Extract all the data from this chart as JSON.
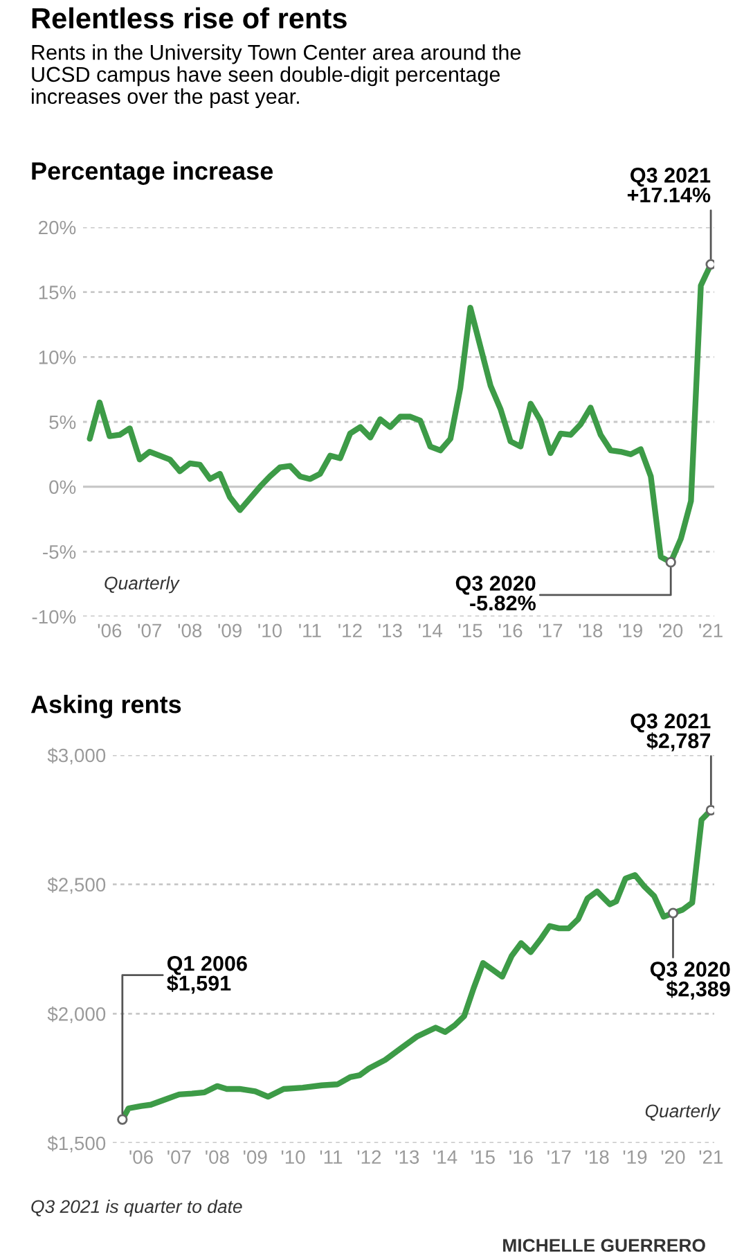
{
  "chart_data": [
    {
      "type": "line",
      "title": "Percentage increase",
      "subtitle": "Relentless rise of rents\nRents in the University Town Center area around the\nUCSD campus have seen double-digit percentage\nincreases over the past year.",
      "series": [
        {
          "color": "#3d9b47",
          "x": [
            "2006-01",
            "2006-04",
            "2006-07",
            "2006-10",
            "2007-01",
            "2007-04",
            "2007-07",
            "2008-01",
            "2008-04",
            "2008-07",
            "2008-10",
            "2009-01",
            "2009-04",
            "2009-07",
            "2009-10",
            "2010-04",
            "2010-07",
            "2010-10",
            "2011-01",
            "2011-04",
            "2011-07",
            "2011-10",
            "2012-01",
            "2012-04",
            "2012-07",
            "2012-10",
            "2013-01",
            "2013-04",
            "2013-07",
            "2013-10",
            "2014-01",
            "2014-04",
            "2014-07",
            "2014-10",
            "2015-01",
            "2015-04",
            "2015-07",
            "2015-10",
            "2016-01",
            "2016-04",
            "2016-07",
            "2016-10",
            "2017-01",
            "2017-04",
            "2017-07",
            "2017-10",
            "2018-01",
            "2018-04",
            "2018-07",
            "2018-10",
            "2019-01",
            "2019-04",
            "2019-07",
            "2019-10",
            "2020-01",
            "2020-04",
            "2020-07",
            "2020-10",
            "2021-01",
            "2021-04",
            "2021-07"
          ],
          "values": [
            3.7,
            6.5,
            3.9,
            4.0,
            4.5,
            2.1,
            2.7,
            2.1,
            1.2,
            1.8,
            1.7,
            0.6,
            1.0,
            -0.8,
            -1.8,
            0.0,
            0.8,
            1.5,
            1.6,
            0.8,
            0.6,
            1.0,
            2.4,
            2.2,
            4.1,
            4.6,
            3.8,
            5.2,
            4.6,
            5.4,
            5.4,
            5.1,
            3.1,
            2.8,
            3.7,
            7.6,
            13.8,
            10.8,
            7.8,
            6.0,
            3.5,
            3.1,
            6.4,
            5.1,
            2.6,
            4.1,
            4.0,
            4.8,
            6.1,
            4.0,
            2.8,
            2.7,
            2.5,
            2.9,
            0.8,
            -5.4,
            -5.82,
            -4.0,
            -1.1,
            15.5,
            17.14
          ]
        }
      ],
      "xlim": [
        "2005-11",
        "2021-08"
      ],
      "xticks": [
        {
          "value": "2006-07",
          "label": "'06"
        },
        {
          "value": "2007-07",
          "label": "'07"
        },
        {
          "value": "2008-07",
          "label": "'08"
        },
        {
          "value": "2009-07",
          "label": "'09"
        },
        {
          "value": "2010-07",
          "label": "'10"
        },
        {
          "value": "2011-07",
          "label": "'11"
        },
        {
          "value": "2012-07",
          "label": "'12"
        },
        {
          "value": "2013-07",
          "label": "'13"
        },
        {
          "value": "2014-07",
          "label": "'14"
        },
        {
          "value": "2015-07",
          "label": "'15"
        },
        {
          "value": "2016-07",
          "label": "'16"
        },
        {
          "value": "2017-07",
          "label": "'17"
        },
        {
          "value": "2018-07",
          "label": "'18"
        },
        {
          "value": "2019-07",
          "label": "'19"
        },
        {
          "value": "2020-07",
          "label": "'20"
        },
        {
          "value": "2021-07",
          "label": "'21"
        }
      ],
      "ylim": [
        -10,
        20
      ],
      "yticks": [
        {
          "value": -10,
          "label": "-10%"
        },
        {
          "value": -5,
          "label": "-5%"
        },
        {
          "value": 0,
          "label": "0%"
        },
        {
          "value": 5,
          "label": "5%"
        },
        {
          "value": 10,
          "label": "10%"
        },
        {
          "value": 15,
          "label": "15%"
        },
        {
          "value": 20,
          "label": "20%"
        }
      ],
      "grid": "y",
      "ref_lines": [
        {
          "axis": "y",
          "value": 0,
          "color": "#c8c8c8"
        }
      ],
      "annotations": [
        {
          "text": "Q3 2021\n+17.14%",
          "x": "2021-07",
          "y": 17.14
        },
        {
          "text": "Q3 2020\n-5.82%",
          "x": "2020-07",
          "y": -5.82
        },
        "Quarterly"
      ]
    },
    {
      "type": "line",
      "title": "Asking rents",
      "series": [
        {
          "color": "#3d9b47",
          "x": [
            "2006-01",
            "2006-03",
            "2006-07",
            "2006-10",
            "2007-03",
            "2007-07",
            "2007-11",
            "2008-03",
            "2008-07",
            "2008-10",
            "2009-02",
            "2009-07",
            "2009-11",
            "2010-04",
            "2010-10",
            "2011-04",
            "2011-09",
            "2012-01",
            "2012-04",
            "2012-07",
            "2012-12",
            "2013-05",
            "2013-10",
            "2014-04",
            "2014-07",
            "2014-10",
            "2015-01",
            "2015-04",
            "2015-07",
            "2015-10",
            "2016-01",
            "2016-04",
            "2016-07",
            "2016-10",
            "2017-01",
            "2017-04",
            "2017-07",
            "2017-10",
            "2018-01",
            "2018-04",
            "2018-07",
            "2018-11",
            "2019-01",
            "2019-04",
            "2019-07",
            "2019-10",
            "2020-01",
            "2020-04",
            "2020-07",
            "2020-10",
            "2021-01",
            "2021-04",
            "2021-07"
          ],
          "values": [
            1591,
            1634,
            1643,
            1648,
            1670,
            1688,
            1691,
            1696,
            1720,
            1709,
            1709,
            1700,
            1679,
            1709,
            1714,
            1723,
            1727,
            1755,
            1762,
            1789,
            1821,
            1866,
            1911,
            1946,
            1929,
            1955,
            1991,
            2098,
            2196,
            2170,
            2143,
            2223,
            2273,
            2238,
            2286,
            2339,
            2330,
            2330,
            2366,
            2446,
            2473,
            2423,
            2434,
            2523,
            2536,
            2491,
            2455,
            2375,
            2389,
            2402,
            2429,
            2750,
            2787
          ]
        }
      ],
      "xlim": [
        "2005-10",
        "2021-08"
      ],
      "xticks": [
        {
          "value": "2006-07",
          "label": "'06"
        },
        {
          "value": "2007-07",
          "label": "'07"
        },
        {
          "value": "2008-07",
          "label": "'08"
        },
        {
          "value": "2009-07",
          "label": "'09"
        },
        {
          "value": "2010-07",
          "label": "'10"
        },
        {
          "value": "2011-07",
          "label": "'11"
        },
        {
          "value": "2012-07",
          "label": "'12"
        },
        {
          "value": "2013-07",
          "label": "'13"
        },
        {
          "value": "2014-07",
          "label": "'14"
        },
        {
          "value": "2015-07",
          "label": "'15"
        },
        {
          "value": "2016-07",
          "label": "'16"
        },
        {
          "value": "2017-07",
          "label": "'17"
        },
        {
          "value": "2018-07",
          "label": "'18"
        },
        {
          "value": "2019-07",
          "label": "'19"
        },
        {
          "value": "2020-07",
          "label": "'20"
        },
        {
          "value": "2021-07",
          "label": "'21"
        }
      ],
      "ylim": [
        1500,
        3000
      ],
      "yticks": [
        {
          "value": 1500,
          "label": "$1,500"
        },
        {
          "value": 2000,
          "label": "$2,000"
        },
        {
          "value": 2500,
          "label": "$2,500"
        },
        {
          "value": 3000,
          "label": "$3,000"
        }
      ],
      "grid": "y",
      "annotations": [
        {
          "text": "Q3 2021\n$2,787",
          "x": "2021-07",
          "y": 2787
        },
        {
          "text": "Q3 2020\n$2,389",
          "x": "2020-07",
          "y": 2389
        },
        {
          "text": "Q1 2006\n$1,591",
          "x": "2006-01",
          "y": 1591
        },
        "Quarterly",
        "Q3 2021 is quarter to date",
        "MICHELLE GUERRERO"
      ]
    }
  ]
}
